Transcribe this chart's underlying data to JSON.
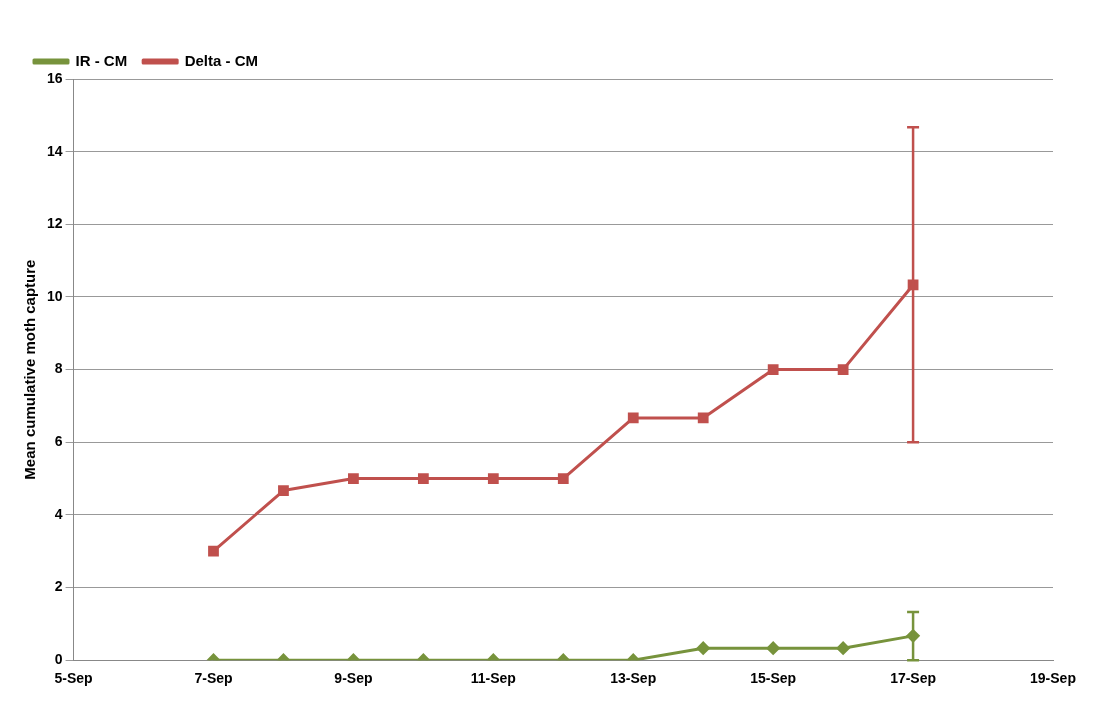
{
  "chart_data": {
    "type": "line",
    "ylabel": "Mean cumulative moth capture",
    "x": [
      "--09-07",
      "--09-08",
      "--09-09",
      "--09-10",
      "--09-11",
      "--09-12",
      "--09-13",
      "--09-14",
      "--09-15",
      "--09-16",
      "--09-17"
    ],
    "series": [
      {
        "name": "IR - CM",
        "color": "#77933c",
        "marker": "diamond",
        "values": [
          0,
          0,
          0,
          0,
          0,
          0,
          0,
          0.33,
          0.33,
          0.33,
          0.67
        ],
        "errors": [
          null,
          null,
          null,
          null,
          null,
          null,
          null,
          null,
          null,
          null,
          [
            0,
            1.33
          ]
        ]
      },
      {
        "name": "Delta - CM",
        "color": "#c0504d",
        "marker": "square",
        "values": [
          3,
          4.67,
          5,
          5,
          5,
          5,
          6.67,
          6.67,
          8,
          8,
          10.33
        ],
        "errors": [
          null,
          null,
          null,
          null,
          null,
          null,
          null,
          null,
          null,
          null,
          [
            6,
            14.67
          ]
        ]
      }
    ],
    "xlim": [
      "--09-05",
      "--09-19"
    ],
    "xticks": [
      {
        "value": "--09-05",
        "label": "5-Sep"
      },
      {
        "value": "--09-07",
        "label": "7-Sep"
      },
      {
        "value": "--09-09",
        "label": "9-Sep"
      },
      {
        "value": "--09-11",
        "label": "11-Sep"
      },
      {
        "value": "--09-13",
        "label": "13-Sep"
      },
      {
        "value": "--09-15",
        "label": "15-Sep"
      },
      {
        "value": "--09-17",
        "label": "17-Sep"
      },
      {
        "value": "--09-19",
        "label": "19-Sep"
      }
    ],
    "ylim": [
      0,
      16
    ],
    "yticks": [
      0,
      2,
      4,
      6,
      8,
      10,
      12,
      14,
      16
    ],
    "grid": "y",
    "legend": "top left",
    "line_style": "solid"
  }
}
